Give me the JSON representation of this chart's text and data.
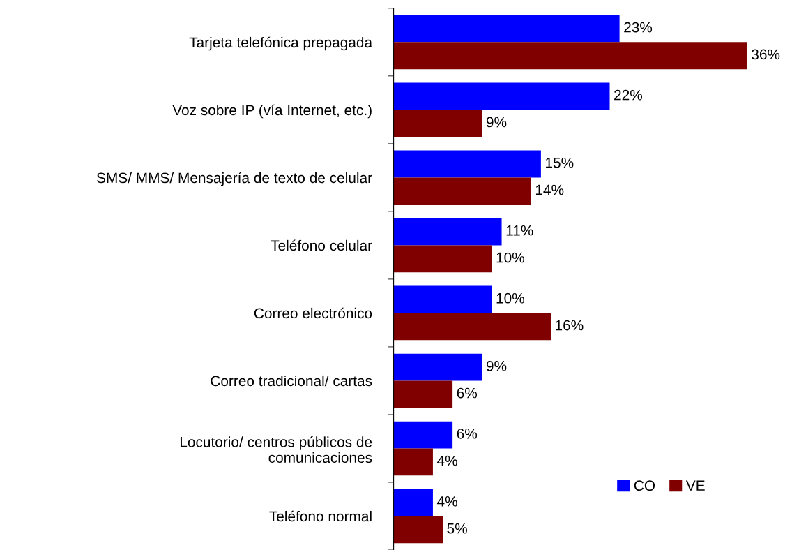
{
  "chart_data": {
    "type": "bar",
    "orientation": "horizontal",
    "legend": "bottom right",
    "grid": false,
    "categories": [
      "Tarjeta telefónica prepagada",
      "Voz sobre IP (vía Internet, etc.)",
      "SMS/ MMS/ Mensajería de texto de celular",
      "Teléfono celular",
      "Correo electrónico",
      "Correo tradicional/ cartas",
      "Locutorio/ centros públicos de\ncomunicaciones",
      "Teléfono normal"
    ],
    "series": [
      {
        "name": "CO",
        "color": "#0000ff",
        "values": [
          23,
          22,
          15,
          11,
          10,
          9,
          6,
          4
        ],
        "value_labels": [
          "23%",
          "22%",
          "15%",
          "11%",
          "10%",
          "9%",
          "6%",
          "4%"
        ]
      },
      {
        "name": "VE",
        "color": "#800000",
        "values": [
          36,
          9,
          14,
          10,
          16,
          6,
          4,
          5
        ],
        "value_labels": [
          "36%",
          "9%",
          "14%",
          "10%",
          "16%",
          "6%",
          "4%",
          "5%"
        ]
      }
    ]
  }
}
